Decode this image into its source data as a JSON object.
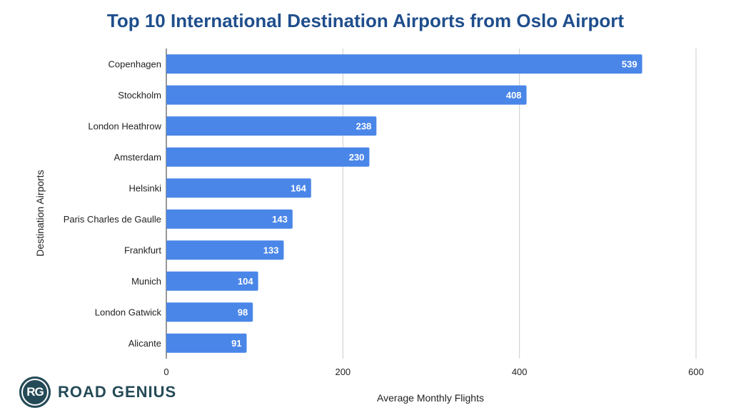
{
  "chart_data": {
    "type": "bar",
    "orientation": "horizontal",
    "title": "Top 10 International Destination Airports from Oslo Airport",
    "xlabel": "Average Monthly Flights",
    "ylabel": "Destination Airports",
    "categories": [
      "Copenhagen",
      "Stockholm",
      "London Heathrow",
      "Amsterdam",
      "Helsinki",
      "Paris Charles de Gaulle",
      "Frankfurt",
      "Munich",
      "London Gatwick",
      "Alicante"
    ],
    "values": [
      539,
      408,
      238,
      230,
      164,
      143,
      133,
      104,
      98,
      91
    ],
    "xlim": [
      0,
      600
    ],
    "xticks": [
      0,
      200,
      400,
      600
    ],
    "grid": true,
    "data_labels": true,
    "bar_color": "#4a86e8"
  },
  "logo": {
    "badge": "RG",
    "text": "ROAD GENIUS"
  }
}
